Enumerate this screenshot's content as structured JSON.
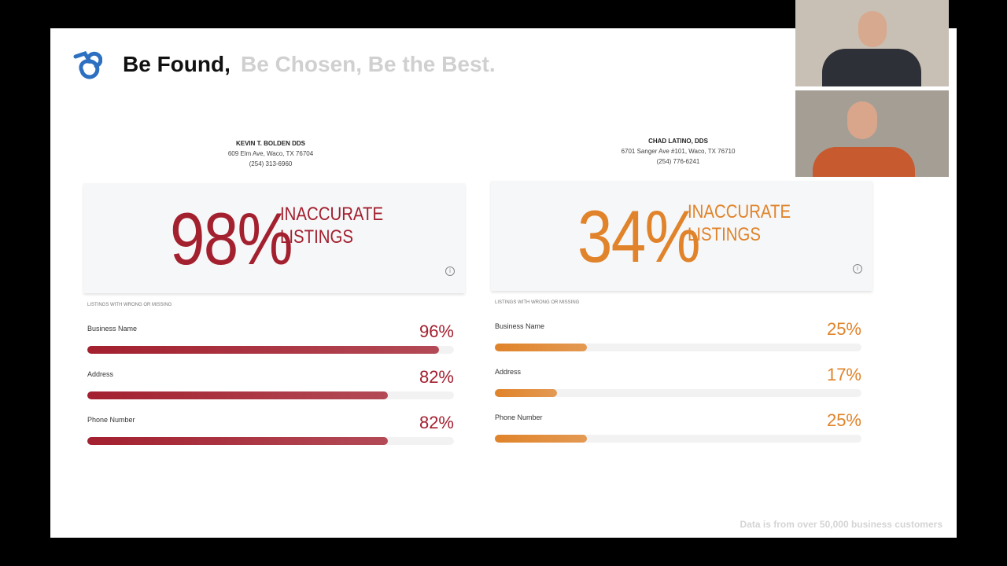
{
  "header": {
    "title_bold": "Be Found,",
    "title_light": "Be Chosen, Be the Best."
  },
  "cards": [
    {
      "name": "KEVIN T. BOLDEN DDS",
      "address": "609 Elm Ave, Waco, TX 76704",
      "phone": "(254) 313-6960",
      "big_value": "98%",
      "big_caption_1": "INACCURATE",
      "big_caption_2": "LISTINGS",
      "section_label": "LISTINGS WITH WRONG OR MISSING",
      "color": "#a3202f",
      "rows": [
        {
          "label": "Business Name",
          "value": 96,
          "value_label": "96%"
        },
        {
          "label": "Address",
          "value": 82,
          "value_label": "82%"
        },
        {
          "label": "Phone Number",
          "value": 82,
          "value_label": "82%"
        }
      ]
    },
    {
      "name": "CHAD LATINO, DDS",
      "address": "6701 Sanger Ave #101, Waco, TX 76710",
      "phone": "(254) 776-6241",
      "big_value": "34%",
      "big_caption_1": "INACCURATE",
      "big_caption_2": "LISTINGS",
      "section_label": "LISTINGS WITH WRONG OR MISSING",
      "color": "#e0832a",
      "rows": [
        {
          "label": "Business Name",
          "value": 25,
          "value_label": "25%"
        },
        {
          "label": "Address",
          "value": 17,
          "value_label": "17%"
        },
        {
          "label": "Phone Number",
          "value": 25,
          "value_label": "25%"
        }
      ]
    }
  ],
  "footer": "Data is from over 50,000 business customers"
}
